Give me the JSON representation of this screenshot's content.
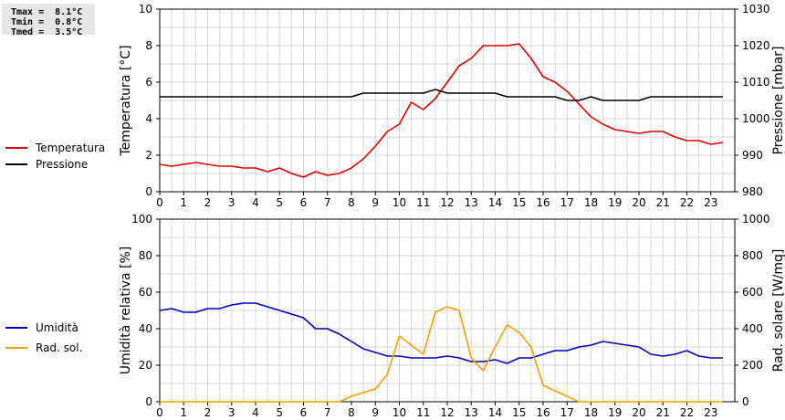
{
  "stats": {
    "tmax": "Tmax =  8.1°C",
    "tmin": "Tmin =  0.8°C",
    "tmed": "Tmed =  3.5°C"
  },
  "chart_data": [
    {
      "type": "line",
      "x_ticks": [
        "0",
        "1",
        "2",
        "3",
        "4",
        "5",
        "6",
        "7",
        "8",
        "9",
        "10",
        "11",
        "12",
        "13",
        "14",
        "15",
        "16",
        "17",
        "18",
        "19",
        "20",
        "21",
        "22",
        "23"
      ],
      "xlim": [
        0,
        24
      ],
      "ylabel_left": "Temperatura [°C]",
      "ylabel_right": "Pressione [mbar]",
      "ylim_left": [
        0,
        10
      ],
      "ylim_right": [
        980,
        1030
      ],
      "yticks_left": [
        "0",
        "2",
        "4",
        "6",
        "8",
        "10"
      ],
      "yticks_right": [
        "980",
        "990",
        "1000",
        "1010",
        "1020",
        "1030"
      ],
      "grid": true,
      "legend_position": "left",
      "series": [
        {
          "name": "Temperatura",
          "color": "#dd0000",
          "axis": "left",
          "x": [
            0,
            0.5,
            1,
            1.5,
            2,
            2.5,
            3,
            3.5,
            4,
            4.5,
            5,
            5.5,
            6,
            6.5,
            7,
            7.5,
            8,
            8.5,
            9,
            9.5,
            10,
            10.5,
            11,
            11.5,
            12,
            12.5,
            13,
            13.5,
            14,
            14.5,
            15,
            15.5,
            16,
            16.5,
            17,
            17.5,
            18,
            18.5,
            19,
            19.5,
            20,
            20.5,
            21,
            21.5,
            22,
            22.5,
            23,
            23.5
          ],
          "values": [
            1.5,
            1.4,
            1.5,
            1.6,
            1.5,
            1.4,
            1.4,
            1.3,
            1.3,
            1.1,
            1.3,
            1.0,
            0.8,
            1.1,
            0.9,
            1.0,
            1.3,
            1.8,
            2.5,
            3.3,
            3.7,
            4.9,
            4.5,
            5.1,
            6.0,
            6.9,
            7.3,
            8.0,
            8.0,
            8.0,
            8.1,
            7.3,
            6.3,
            6.0,
            5.5,
            4.8,
            4.1,
            3.7,
            3.4,
            3.3,
            3.2,
            3.3,
            3.3,
            3.0,
            2.8,
            2.8,
            2.6,
            2.7
          ]
        },
        {
          "name": "Pressione",
          "color": "#000000",
          "axis": "right",
          "x": [
            0,
            0.5,
            1,
            1.5,
            2,
            2.5,
            3,
            3.5,
            4,
            4.5,
            5,
            5.5,
            6,
            6.5,
            7,
            7.5,
            8,
            8.5,
            9,
            9.5,
            10,
            10.5,
            11,
            11.5,
            12,
            12.5,
            13,
            13.5,
            14,
            14.5,
            15,
            15.5,
            16,
            16.5,
            17,
            17.5,
            18,
            18.5,
            19,
            19.5,
            20,
            20.5,
            21,
            21.5,
            22,
            22.5,
            23,
            23.5
          ],
          "values": [
            1006,
            1006,
            1006,
            1006,
            1006,
            1006,
            1006,
            1006,
            1006,
            1006,
            1006,
            1006,
            1006,
            1006,
            1006,
            1006,
            1006,
            1007,
            1007,
            1007,
            1007,
            1007,
            1007,
            1008,
            1007,
            1007,
            1007,
            1007,
            1007,
            1006,
            1006,
            1006,
            1006,
            1006,
            1005,
            1005,
            1006,
            1005,
            1005,
            1005,
            1005,
            1006,
            1006,
            1006,
            1006,
            1006,
            1006,
            1006
          ]
        }
      ]
    },
    {
      "type": "line",
      "x_ticks": [
        "0",
        "1",
        "2",
        "3",
        "4",
        "5",
        "6",
        "7",
        "8",
        "9",
        "10",
        "11",
        "12",
        "13",
        "14",
        "15",
        "16",
        "17",
        "18",
        "19",
        "20",
        "21",
        "22",
        "23"
      ],
      "xlim": [
        0,
        24
      ],
      "ylabel_left": "Umidità relativa [%]",
      "ylabel_right": "Rad. solare [W/mq]",
      "ylim_left": [
        0,
        100
      ],
      "ylim_right": [
        0,
        1000
      ],
      "yticks_left": [
        "0",
        "20",
        "40",
        "60",
        "80",
        "100"
      ],
      "yticks_right": [
        "0",
        "200",
        "400",
        "600",
        "800",
        "1000"
      ],
      "grid": true,
      "legend_position": "left",
      "series": [
        {
          "name": "Umidità",
          "color": "#0000bb",
          "axis": "left",
          "x": [
            0,
            0.5,
            1,
            1.5,
            2,
            2.5,
            3,
            3.5,
            4,
            4.5,
            5,
            5.5,
            6,
            6.5,
            7,
            7.5,
            8,
            8.5,
            9,
            9.5,
            10,
            10.5,
            11,
            11.5,
            12,
            12.5,
            13,
            13.5,
            14,
            14.5,
            15,
            15.5,
            16,
            16.5,
            17,
            17.5,
            18,
            18.5,
            19,
            19.5,
            20,
            20.5,
            21,
            21.5,
            22,
            22.5,
            23,
            23.5
          ],
          "values": [
            50,
            51,
            49,
            49,
            51,
            51,
            53,
            54,
            54,
            52,
            50,
            48,
            46,
            40,
            40,
            37,
            33,
            29,
            27,
            25,
            25,
            24,
            24,
            24,
            25,
            24,
            22,
            22,
            23,
            21,
            24,
            24,
            26,
            28,
            28,
            30,
            31,
            33,
            32,
            31,
            30,
            26,
            25,
            26,
            28,
            25,
            24,
            24
          ]
        },
        {
          "name": "Rad. sol.",
          "color": "#f0a000",
          "axis": "right",
          "x": [
            0,
            0.5,
            1,
            1.5,
            2,
            2.5,
            3,
            3.5,
            4,
            4.5,
            5,
            5.5,
            6,
            6.5,
            7,
            7.5,
            8,
            8.5,
            9,
            9.5,
            10,
            10.5,
            11,
            11.5,
            12,
            12.5,
            13,
            13.5,
            14,
            14.5,
            15,
            15.5,
            16,
            16.5,
            17,
            17.5,
            18,
            18.5,
            19,
            19.5,
            20,
            20.5,
            21,
            21.5,
            22,
            22.5,
            23,
            23.5
          ],
          "values": [
            0,
            0,
            0,
            0,
            0,
            0,
            0,
            0,
            0,
            0,
            0,
            0,
            0,
            0,
            0,
            0,
            30,
            50,
            70,
            150,
            360,
            310,
            260,
            490,
            520,
            500,
            240,
            170,
            300,
            420,
            380,
            300,
            90,
            60,
            30,
            0,
            0,
            0,
            0,
            0,
            0,
            0,
            0,
            0,
            0,
            0,
            0,
            0
          ]
        }
      ]
    }
  ]
}
